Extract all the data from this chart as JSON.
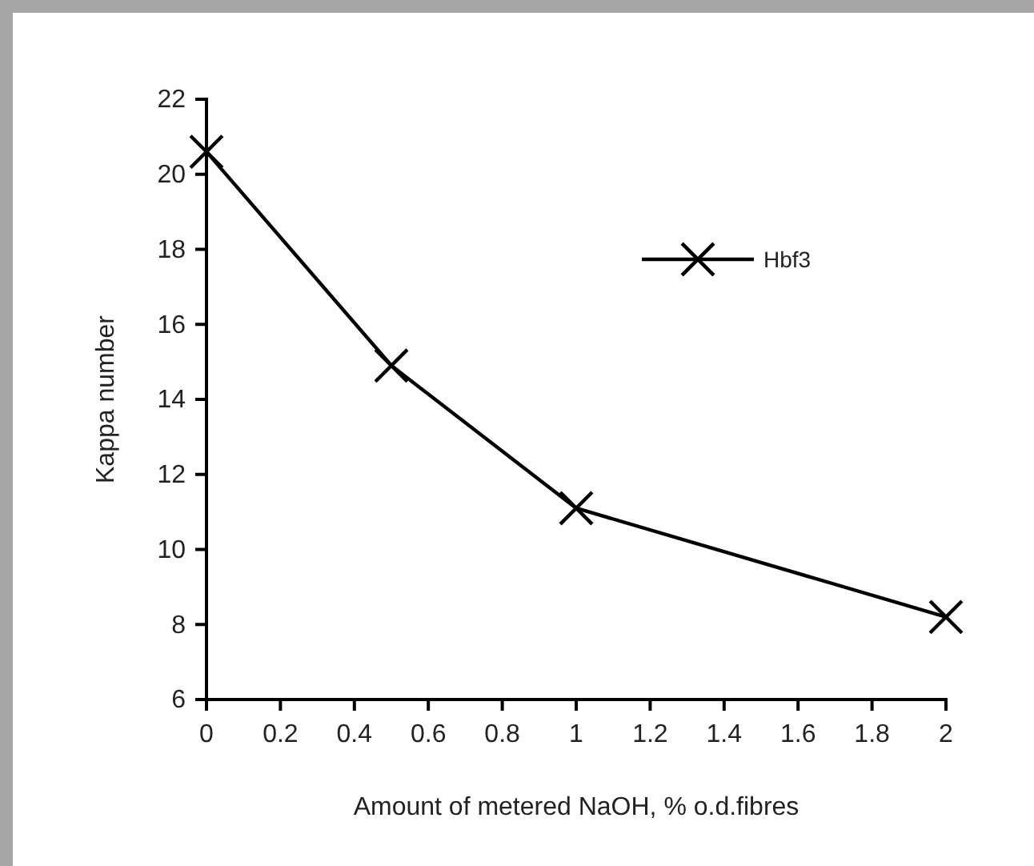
{
  "chart_data": {
    "type": "line",
    "xlabel": "Amount of metered NaOH, % o.d.fibres",
    "ylabel": "Kappa number",
    "x": [
      0,
      0.5,
      1,
      2
    ],
    "series": [
      {
        "name": "Hbf3",
        "color": "#000000",
        "values": [
          20.6,
          14.9,
          11.1,
          8.2
        ]
      }
    ],
    "xlim": [
      0,
      2
    ],
    "xticks": [
      0,
      0.2,
      0.4,
      0.6,
      0.8,
      1,
      1.2,
      1.4,
      1.6,
      1.8,
      2
    ],
    "ylim": [
      6,
      22
    ],
    "yticks": [
      6,
      8,
      10,
      12,
      14,
      16,
      18,
      20,
      22
    ],
    "marker": "cross",
    "legend": "top right",
    "grid": false
  }
}
